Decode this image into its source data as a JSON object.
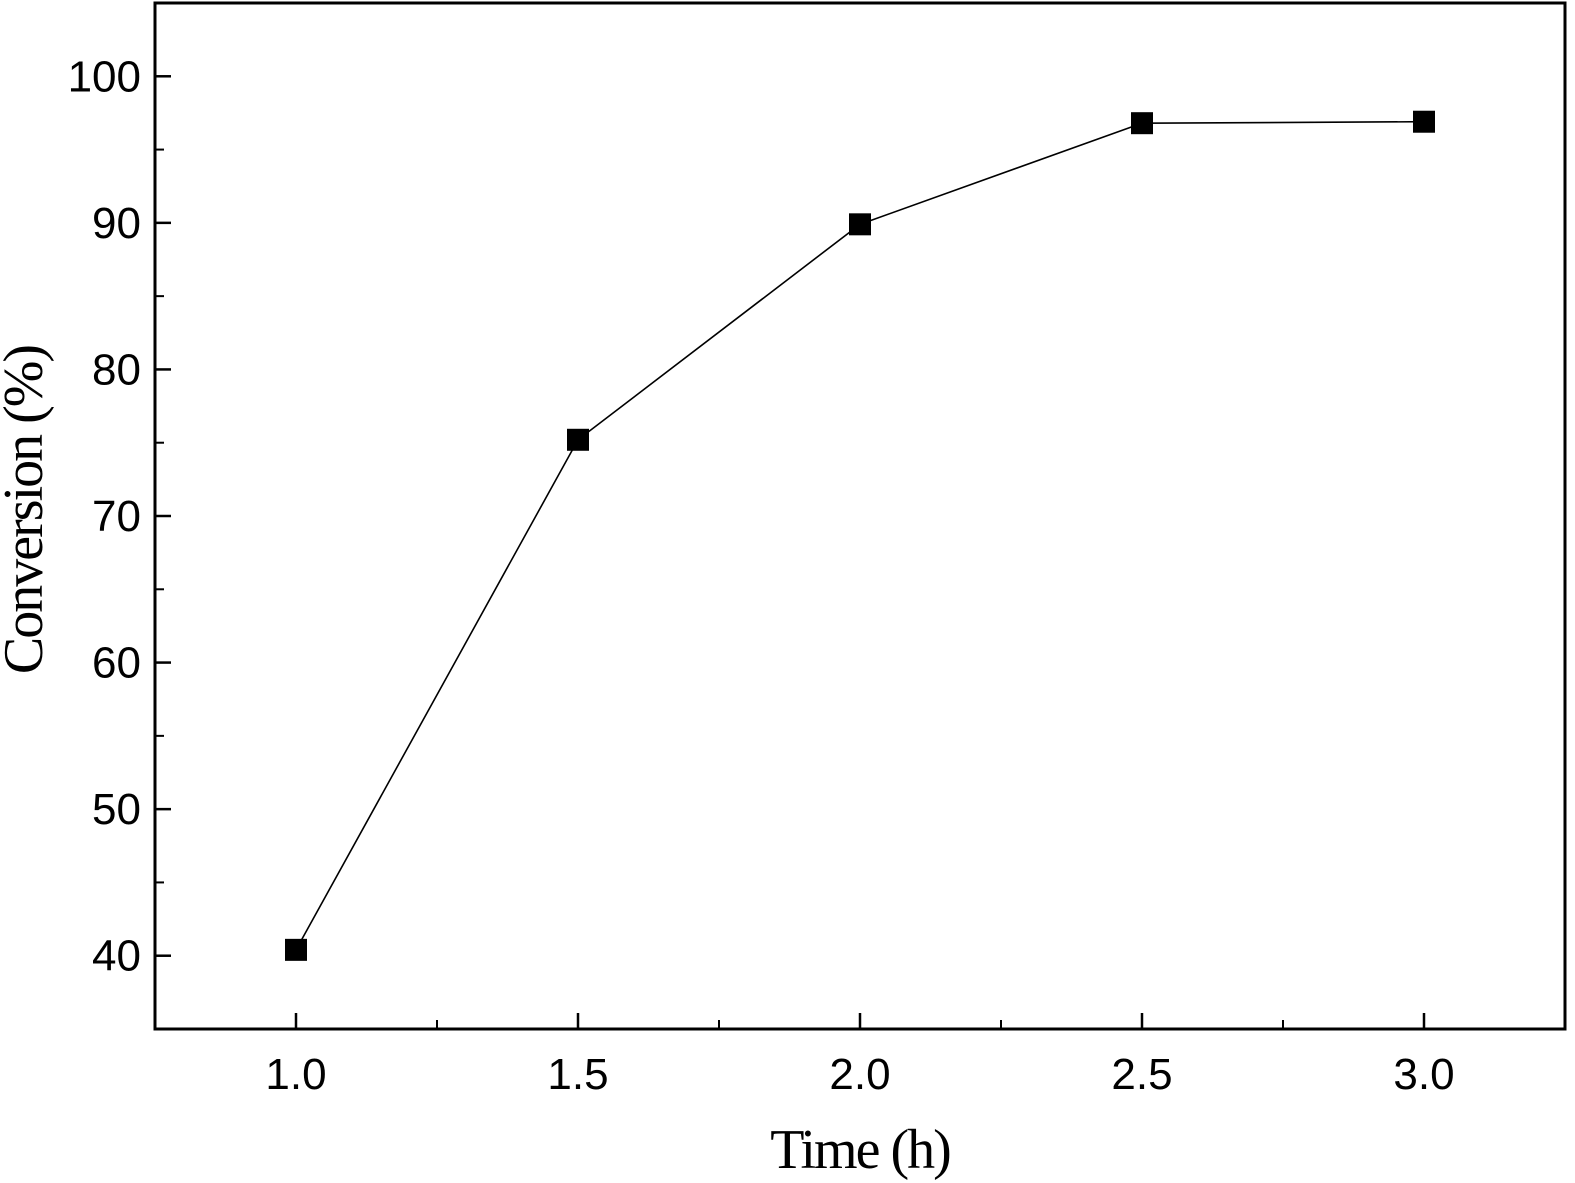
{
  "chart_data": {
    "type": "line",
    "title": "",
    "xlabel": "Time (h)",
    "ylabel": "Conversion (%)",
    "xlim": [
      0.75,
      3.25
    ],
    "ylim": [
      35,
      105
    ],
    "x_ticks": [
      "1.0",
      "1.5",
      "2.0",
      "2.5",
      "3.0"
    ],
    "y_ticks": [
      "40",
      "50",
      "60",
      "70",
      "80",
      "90",
      "100"
    ],
    "grid": false,
    "legend": "none",
    "marker": "square",
    "color": "#000000",
    "series": [
      {
        "x": [
          1.0,
          1.5,
          2.0,
          2.5,
          3.0
        ],
        "y": [
          40.4,
          75.2,
          89.9,
          96.8,
          96.9
        ]
      }
    ]
  }
}
